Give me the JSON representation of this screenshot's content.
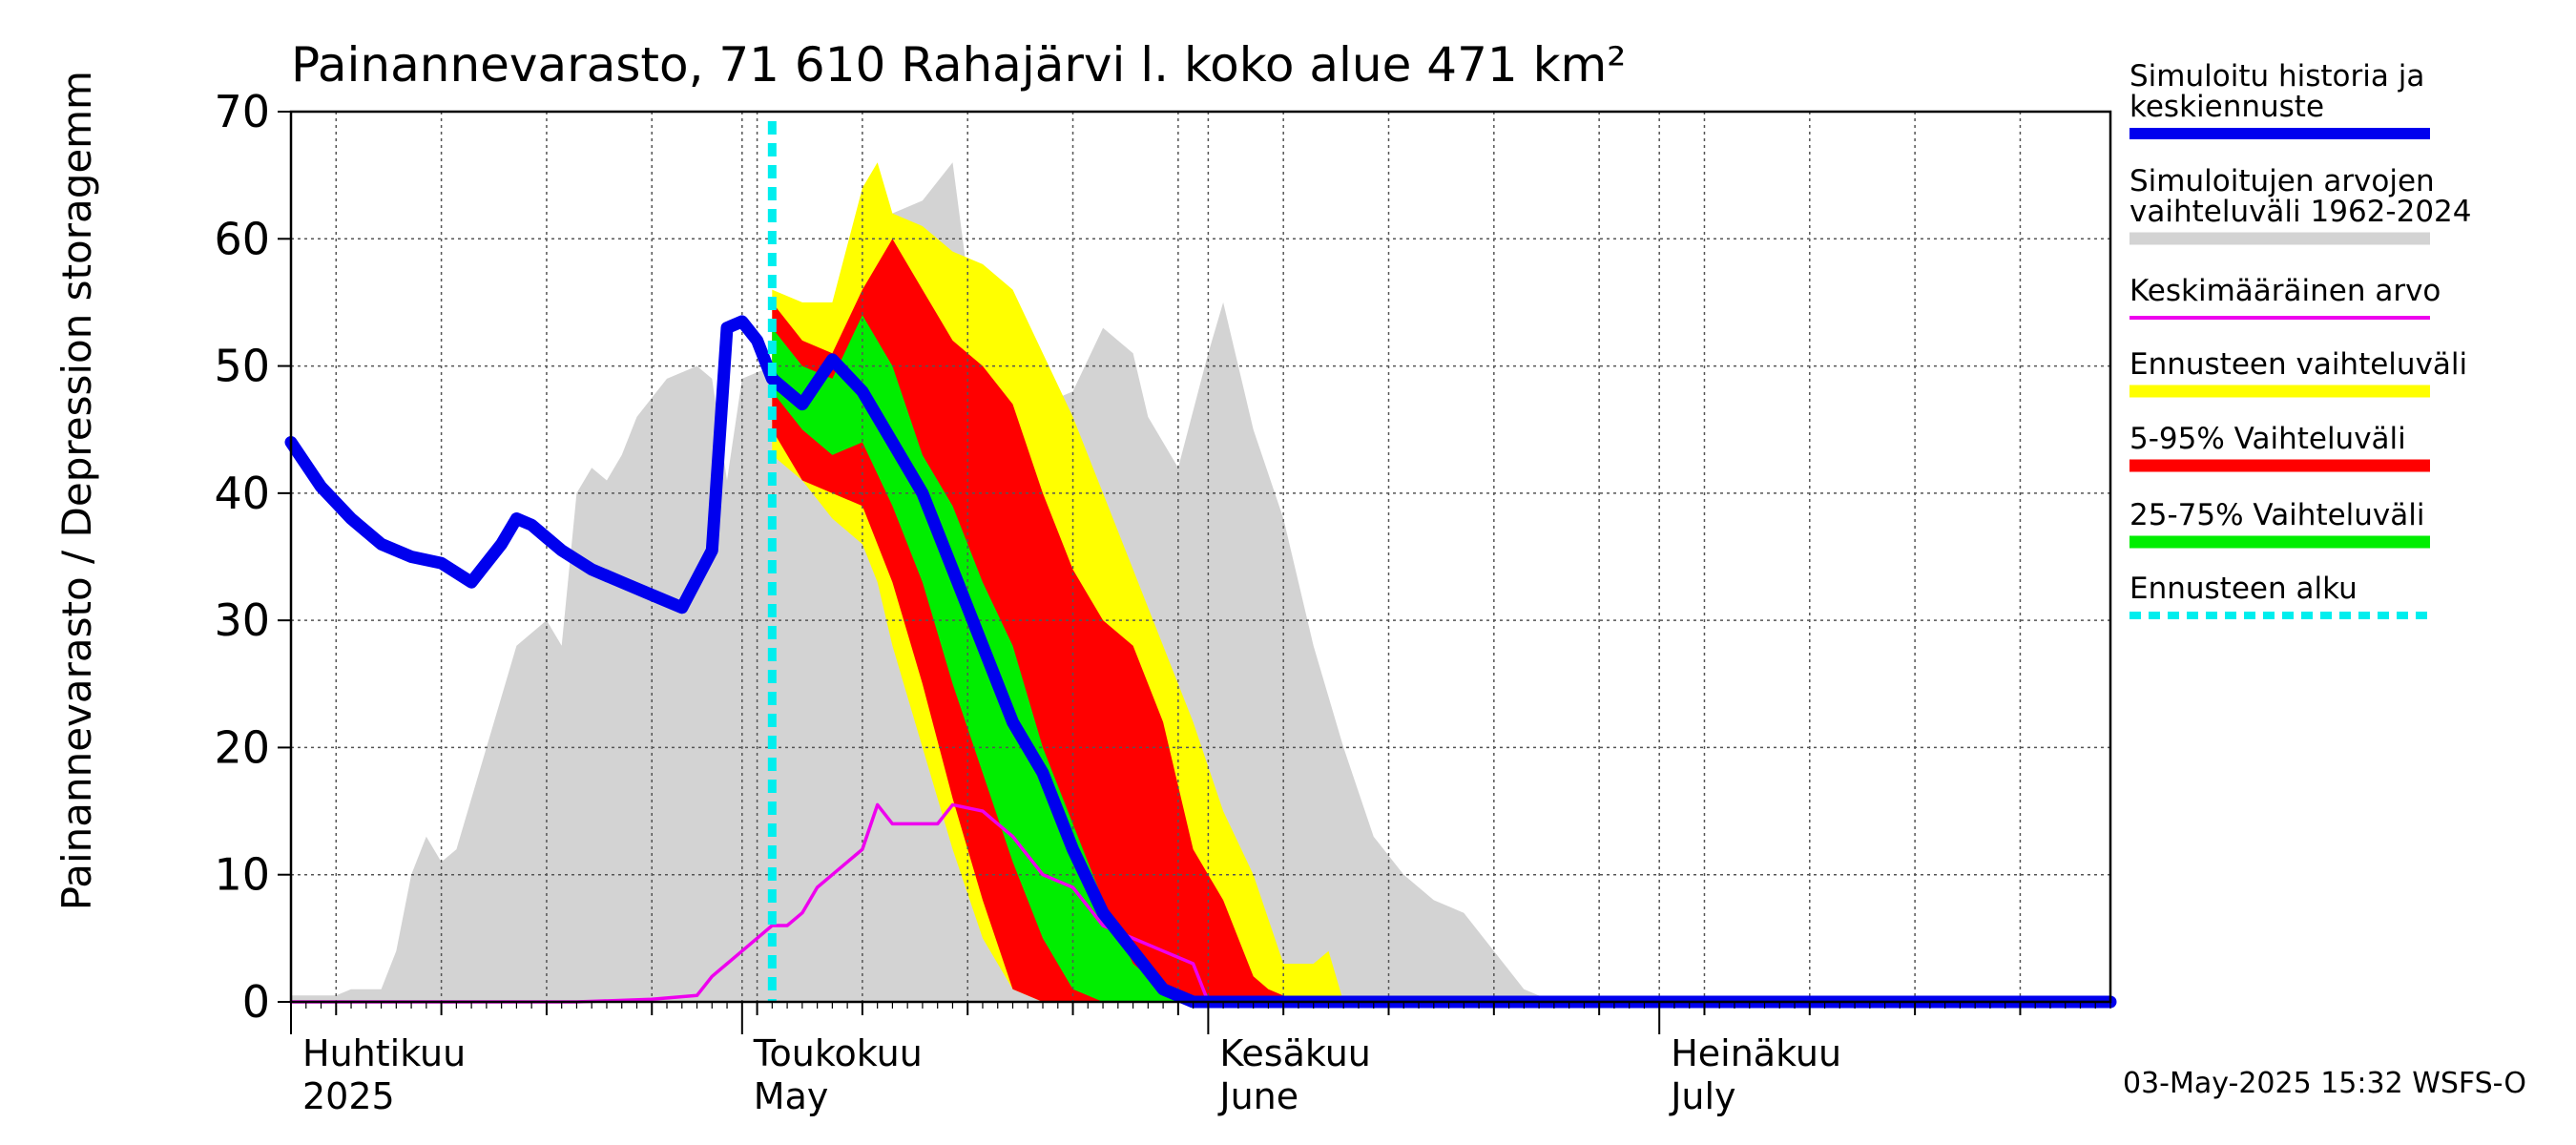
{
  "chart_data": {
    "type": "area",
    "title": "Painannevarasto, 71 610 Rahajärvi l. koko alue 471 km²",
    "ylabel": "Painannevarasto / Depression storage",
    "yunit": "mm",
    "ylim": [
      0,
      70
    ],
    "yticks": [
      0,
      10,
      20,
      30,
      40,
      50,
      60,
      70
    ],
    "xlim": [
      "2025-04-01",
      "2025-07-31"
    ],
    "grid": true,
    "month_labels": [
      {
        "line1": "Huhtikuu",
        "line2": "2025",
        "date": "2025-04-01"
      },
      {
        "line1": "Toukokuu",
        "line2": "May",
        "date": "2025-05-01"
      },
      {
        "line1": "Kesäkuu",
        "line2": "June",
        "date": "2025-06-01"
      },
      {
        "line1": "Heinäkuu",
        "line2": "July",
        "date": "2025-07-01"
      }
    ],
    "forecast_start": "2025-05-03",
    "legend_position": "right",
    "legend": [
      {
        "label": "Simuloitu historia ja keskiennuste",
        "color": "#0000ee",
        "style": "thick"
      },
      {
        "label": "Simuloitujen arvojen vaihteluväli 1962-2024",
        "color": "#d3d3d3",
        "style": "band"
      },
      {
        "label": "Keskimääräinen arvo",
        "color": "#ee00ee",
        "style": "thin"
      },
      {
        "label": "Ennusteen vaihteluväli",
        "color": "#ffff00",
        "style": "band"
      },
      {
        "label": "5-95% Vaihteluväli",
        "color": "#ff0000",
        "style": "band"
      },
      {
        "label": "25-75% Vaihteluväli",
        "color": "#00ee00",
        "style": "band"
      },
      {
        "label": "Ennusteen alku",
        "color": "#00eeee",
        "style": "dotted"
      }
    ],
    "series": [
      {
        "name": "Simuloitujen arvojen vaihteluväli 1962-2024",
        "type": "band",
        "color": "#d3d3d3",
        "x": [
          "2025-04-01",
          "2025-04-04",
          "2025-04-05",
          "2025-04-06",
          "2025-04-07",
          "2025-04-08",
          "2025-04-09",
          "2025-04-10",
          "2025-04-11",
          "2025-04-12",
          "2025-04-14",
          "2025-04-16",
          "2025-04-18",
          "2025-04-19",
          "2025-04-20",
          "2025-04-21",
          "2025-04-22",
          "2025-04-23",
          "2025-04-24",
          "2025-04-26",
          "2025-04-28",
          "2025-04-29",
          "2025-04-30",
          "2025-05-01",
          "2025-05-03",
          "2025-05-05",
          "2025-05-07",
          "2025-05-09",
          "2025-05-11",
          "2025-05-13",
          "2025-05-15",
          "2025-05-16",
          "2025-05-18",
          "2025-05-20",
          "2025-05-21",
          "2025-05-23",
          "2025-05-25",
          "2025-05-27",
          "2025-05-28",
          "2025-05-30",
          "2025-06-01",
          "2025-06-02",
          "2025-06-04",
          "2025-06-06",
          "2025-06-08",
          "2025-06-10",
          "2025-06-12",
          "2025-06-14",
          "2025-06-16",
          "2025-06-18",
          "2025-06-20",
          "2025-06-22",
          "2025-06-24",
          "2025-07-31"
        ],
        "low": [
          0,
          0,
          0,
          0,
          0,
          0,
          0,
          0,
          0,
          0,
          0,
          0,
          0,
          0,
          0,
          0,
          0,
          0,
          0,
          0,
          0,
          0,
          0,
          0,
          0,
          0,
          0,
          0,
          0,
          0,
          0,
          0,
          0,
          0,
          0,
          0,
          0,
          0,
          0,
          0,
          0,
          0,
          0,
          0,
          0,
          0,
          0,
          0,
          0,
          0,
          0,
          0,
          0,
          0
        ],
        "high": [
          0.5,
          0.5,
          1,
          1,
          1,
          4,
          10,
          13,
          11,
          12,
          20,
          28,
          30,
          28,
          40,
          42,
          41,
          43,
          46,
          49,
          50,
          49,
          41,
          49,
          50,
          52,
          54,
          58,
          62,
          63,
          66,
          57,
          51,
          52,
          47,
          48,
          53,
          51,
          46,
          42,
          51,
          55,
          45,
          38,
          28,
          20,
          13,
          10,
          8,
          7,
          4,
          1,
          0,
          0
        ]
      },
      {
        "name": "Ennusteen vaihteluväli",
        "type": "band",
        "color": "#ffff00",
        "x": [
          "2025-05-03",
          "2025-05-05",
          "2025-05-07",
          "2025-05-09",
          "2025-05-10",
          "2025-05-11",
          "2025-05-13",
          "2025-05-15",
          "2025-05-17",
          "2025-05-19",
          "2025-05-21",
          "2025-05-23",
          "2025-05-25",
          "2025-05-27",
          "2025-05-29",
          "2025-05-31",
          "2025-06-02",
          "2025-06-04",
          "2025-06-06",
          "2025-06-08",
          "2025-06-09",
          "2025-06-10"
        ],
        "low": [
          43,
          41,
          38,
          36,
          33,
          28,
          20,
          12,
          5,
          1,
          0,
          0,
          0,
          0,
          0,
          0,
          0,
          0,
          0,
          0,
          0,
          0
        ],
        "high": [
          56,
          55,
          55,
          64,
          66,
          62,
          61,
          59,
          58,
          56,
          51,
          46,
          40,
          34,
          28,
          22,
          15,
          10,
          3,
          3,
          4,
          0
        ]
      },
      {
        "name": "5-95% Vaihteluväli",
        "type": "band",
        "color": "#ff0000",
        "x": [
          "2025-05-03",
          "2025-05-05",
          "2025-05-07",
          "2025-05-09",
          "2025-05-11",
          "2025-05-13",
          "2025-05-15",
          "2025-05-17",
          "2025-05-19",
          "2025-05-21",
          "2025-05-23",
          "2025-05-25",
          "2025-05-27",
          "2025-05-29",
          "2025-05-31",
          "2025-06-02",
          "2025-06-04",
          "2025-06-05",
          "2025-06-07"
        ],
        "low": [
          45,
          41,
          40,
          39,
          33,
          25,
          16,
          8,
          1,
          0,
          0,
          0,
          0,
          0,
          0,
          0,
          0,
          0,
          0
        ],
        "high": [
          55,
          52,
          51,
          56,
          60,
          56,
          52,
          50,
          47,
          40,
          34,
          30,
          28,
          22,
          12,
          8,
          2,
          1,
          0
        ]
      },
      {
        "name": "25-75% Vaihteluväli",
        "type": "band",
        "color": "#00ee00",
        "x": [
          "2025-05-03",
          "2025-05-05",
          "2025-05-07",
          "2025-05-09",
          "2025-05-11",
          "2025-05-13",
          "2025-05-15",
          "2025-05-17",
          "2025-05-19",
          "2025-05-21",
          "2025-05-23",
          "2025-05-25",
          "2025-05-27",
          "2025-05-29",
          "2025-05-31"
        ],
        "low": [
          48,
          45,
          43,
          44,
          39,
          33,
          25,
          18,
          11,
          5,
          1,
          0,
          0,
          0,
          0
        ],
        "high": [
          53,
          50,
          49,
          54,
          50,
          43,
          39,
          33,
          28,
          20,
          14,
          8,
          3,
          1,
          0
        ]
      },
      {
        "name": "Keskimääräinen arvo",
        "type": "line",
        "color": "#ee00ee",
        "x": [
          "2025-04-01",
          "2025-04-20",
          "2025-04-25",
          "2025-04-28",
          "2025-04-29",
          "2025-05-01",
          "2025-05-03",
          "2025-05-04",
          "2025-05-05",
          "2025-05-06",
          "2025-05-07",
          "2025-05-08",
          "2025-05-09",
          "2025-05-10",
          "2025-05-11",
          "2025-05-13",
          "2025-05-14",
          "2025-05-15",
          "2025-05-17",
          "2025-05-18",
          "2025-05-19",
          "2025-05-21",
          "2025-05-23",
          "2025-05-25",
          "2025-05-27",
          "2025-05-29",
          "2025-05-31",
          "2025-06-01",
          "2025-07-31"
        ],
        "y": [
          0,
          0,
          0.2,
          0.5,
          2,
          4,
          6,
          6,
          7,
          9,
          10,
          11,
          12,
          15.5,
          14,
          14,
          14,
          15.5,
          15,
          14,
          13,
          10,
          9,
          6,
          5,
          4,
          3,
          0,
          0
        ]
      },
      {
        "name": "Simuloitu historia ja keskiennuste",
        "type": "line",
        "color": "#0000ee",
        "x": [
          "2025-04-01",
          "2025-04-03",
          "2025-04-05",
          "2025-04-07",
          "2025-04-09",
          "2025-04-11",
          "2025-04-13",
          "2025-04-15",
          "2025-04-16",
          "2025-04-17",
          "2025-04-18",
          "2025-04-19",
          "2025-04-21",
          "2025-04-23",
          "2025-04-25",
          "2025-04-27",
          "2025-04-29",
          "2025-04-30",
          "2025-05-01",
          "2025-05-02",
          "2025-05-03",
          "2025-05-05",
          "2025-05-07",
          "2025-05-09",
          "2025-05-11",
          "2025-05-13",
          "2025-05-15",
          "2025-05-17",
          "2025-05-19",
          "2025-05-21",
          "2025-05-23",
          "2025-05-25",
          "2025-05-27",
          "2025-05-29",
          "2025-05-31",
          "2025-06-01",
          "2025-07-31"
        ],
        "y": [
          44,
          40.5,
          38,
          36,
          35,
          34.5,
          33,
          36,
          38,
          37.5,
          36.5,
          35.5,
          34,
          33,
          32,
          31,
          35.5,
          53,
          53.5,
          52,
          49,
          47,
          50.5,
          48,
          44,
          40,
          34,
          28,
          22,
          18,
          12,
          7,
          4,
          1,
          0,
          0,
          0
        ]
      }
    ]
  },
  "footer": {
    "timestamp": "03-May-2025 15:32 WSFS-O"
  }
}
